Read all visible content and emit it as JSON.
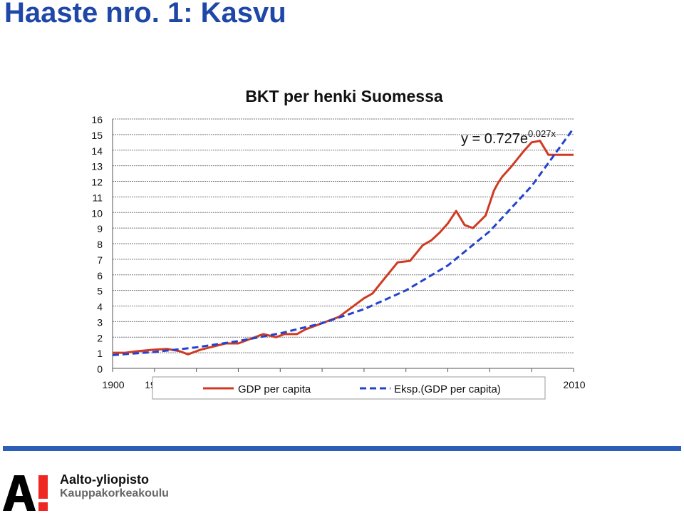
{
  "slide": {
    "title": "Haaste nro. 1: Kasvu",
    "org_name": "Aalto-yliopisto",
    "school_name": "Kauppakorkeakoulu",
    "footer_color": "#2b5fb7"
  },
  "chart_data": {
    "type": "line",
    "title": "BKT per henki Suomessa",
    "xlabel": "",
    "ylabel": "",
    "xlim": [
      1900,
      2010
    ],
    "ylim": [
      0,
      16
    ],
    "y_ticks": [
      "0",
      "1",
      "2",
      "3",
      "4",
      "5",
      "6",
      "7",
      "8",
      "9",
      "10",
      "11",
      "12",
      "13",
      "14",
      "15",
      "16"
    ],
    "x_ticks_visible": [
      "1900",
      "19",
      "2010"
    ],
    "grid": true,
    "legend_position": "bottom",
    "equation": {
      "prefix": "y = 0.727e",
      "superscript": "0.027x"
    },
    "series": [
      {
        "name": "GDP per capita",
        "color": "#d03a22",
        "style": "solid",
        "x": [
          1900,
          1903,
          1906,
          1910,
          1913,
          1916,
          1918,
          1921,
          1924,
          1927,
          1930,
          1933,
          1936,
          1939,
          1941,
          1944,
          1946,
          1949,
          1951,
          1954,
          1957,
          1960,
          1962,
          1965,
          1968,
          1971,
          1974,
          1976,
          1978,
          1980,
          1982,
          1984,
          1986,
          1989,
          1990,
          1991,
          1992,
          1993,
          1995,
          1998,
          2000,
          2002,
          2004,
          2006,
          2007,
          2008,
          2009,
          2010
        ],
        "y": [
          1.0,
          1.0,
          1.1,
          1.2,
          1.25,
          1.1,
          0.9,
          1.2,
          1.4,
          1.6,
          1.6,
          1.9,
          2.2,
          2.0,
          2.2,
          2.2,
          2.5,
          2.8,
          3.0,
          3.3,
          3.9,
          4.5,
          4.8,
          5.8,
          6.8,
          6.9,
          7.9,
          8.2,
          8.7,
          9.3,
          10.1,
          9.2,
          9.0,
          9.8,
          10.6,
          11.4,
          11.9,
          12.3,
          12.9,
          13.9,
          14.5,
          14.6,
          13.7,
          13.7,
          13.7,
          13.7,
          13.7,
          13.7
        ]
      },
      {
        "name": "Eksp.(GDP per capita)",
        "color": "#2343cf",
        "style": "dashed",
        "x": [
          1900,
          1910,
          1920,
          1930,
          1940,
          1950,
          1960,
          1970,
          1980,
          1990,
          2000,
          2010
        ],
        "y": [
          0.85,
          1.05,
          1.35,
          1.75,
          2.25,
          2.9,
          3.8,
          5.0,
          6.6,
          8.8,
          11.7,
          15.4
        ]
      }
    ]
  }
}
